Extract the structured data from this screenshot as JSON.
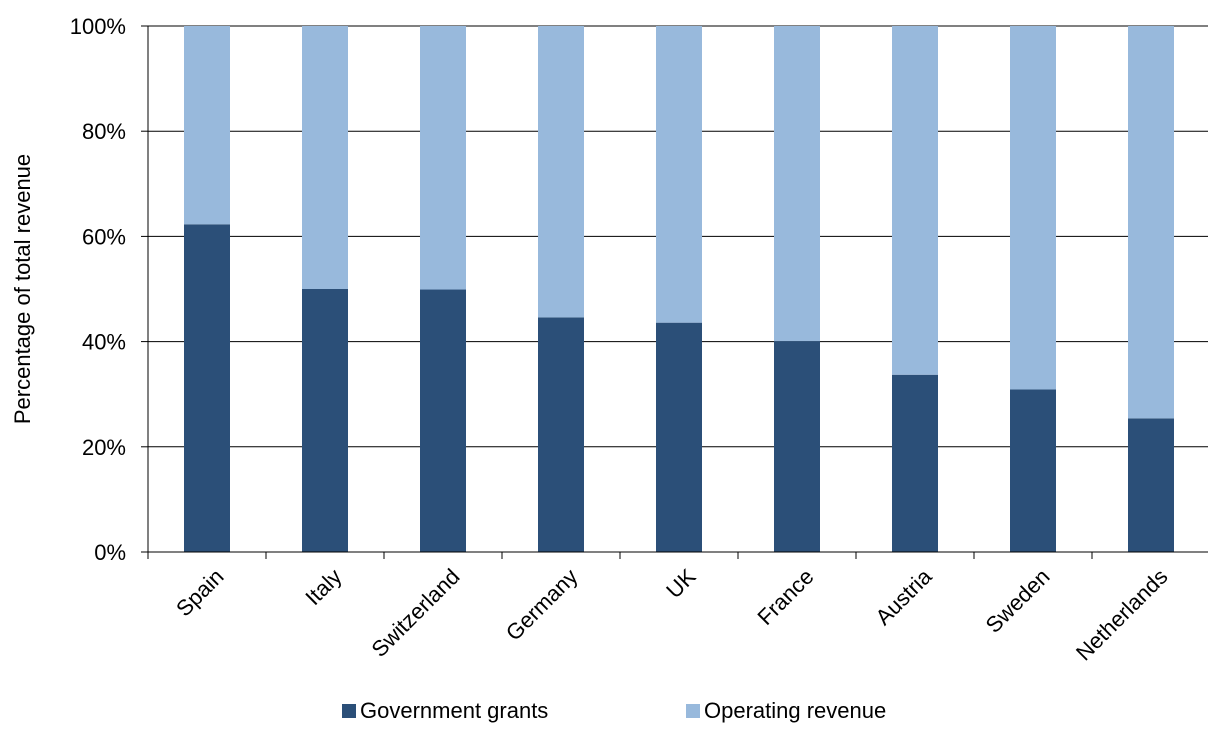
{
  "chart_data": {
    "type": "bar",
    "stacked": true,
    "ylabel": "Percentage of total revenue",
    "xlabel": "",
    "ylim": [
      0,
      100
    ],
    "yticks": [
      "0%",
      "20%",
      "40%",
      "60%",
      "80%",
      "100%"
    ],
    "categories": [
      "Spain",
      "Italy",
      "Switzerland",
      "Germany",
      "UK",
      "France",
      "Austria",
      "Sweden",
      "Netherlands"
    ],
    "series": [
      {
        "name": "Government grants",
        "color": "#2b4f78",
        "values": [
          62.3,
          50.0,
          49.9,
          44.6,
          43.6,
          40.1,
          33.7,
          30.9,
          25.4
        ]
      },
      {
        "name": "Operating revenue",
        "color": "#98b9dc",
        "values": [
          37.7,
          50.0,
          50.1,
          55.4,
          56.4,
          59.9,
          66.3,
          69.1,
          74.6
        ]
      }
    ],
    "grid": true,
    "legend_position": "bottom"
  }
}
